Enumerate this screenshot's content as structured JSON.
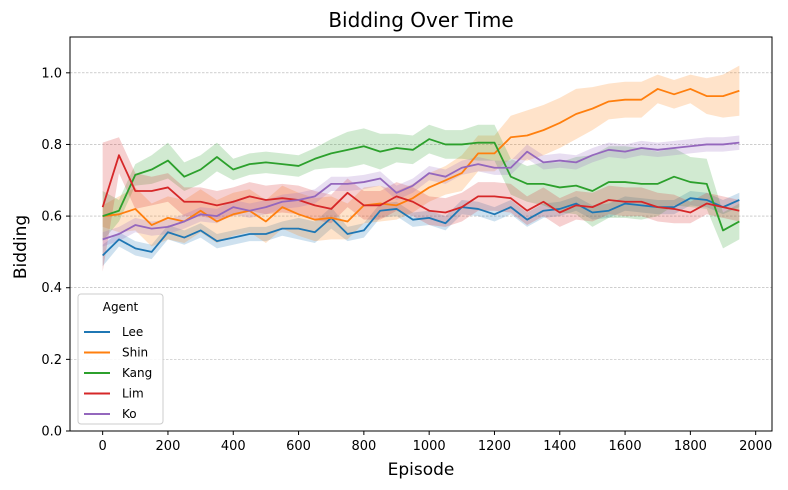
{
  "chart_data": {
    "type": "line",
    "title": "Bidding Over Time",
    "xlabel": "Episode",
    "ylabel": "Bidding",
    "xlim": [
      -100,
      2050
    ],
    "ylim": [
      0.0,
      1.1
    ],
    "xticks": [
      0,
      200,
      400,
      600,
      800,
      1000,
      1200,
      1400,
      1600,
      1800,
      2000
    ],
    "xtick_labels": [
      "0",
      "200",
      "400",
      "600",
      "800",
      "1000",
      "1200",
      "1400",
      "1600",
      "1800",
      "2000"
    ],
    "yticks": [
      0.0,
      0.2,
      0.4,
      0.6,
      0.8,
      1.0
    ],
    "ytick_labels": [
      "0.0",
      "0.2",
      "0.4",
      "0.6",
      "0.8",
      "1.0"
    ],
    "grid": "horizontal dashed",
    "legend_title": "Agent",
    "legend_position": "lower-left",
    "x": [
      0,
      50,
      100,
      150,
      200,
      250,
      300,
      350,
      400,
      450,
      500,
      550,
      600,
      650,
      700,
      750,
      800,
      850,
      900,
      950,
      1000,
      1050,
      1100,
      1150,
      1200,
      1250,
      1300,
      1350,
      1400,
      1450,
      1500,
      1550,
      1600,
      1650,
      1700,
      1750,
      1800,
      1850,
      1900,
      1950
    ],
    "series": [
      {
        "name": "Lee",
        "color": "#1f77b4",
        "values": [
          0.49,
          0.535,
          0.51,
          0.5,
          0.555,
          0.54,
          0.56,
          0.53,
          0.54,
          0.55,
          0.55,
          0.565,
          0.565,
          0.555,
          0.595,
          0.55,
          0.56,
          0.615,
          0.62,
          0.59,
          0.595,
          0.58,
          0.625,
          0.62,
          0.605,
          0.625,
          0.59,
          0.615,
          0.62,
          0.635,
          0.61,
          0.615,
          0.635,
          0.63,
          0.625,
          0.625,
          0.65,
          0.645,
          0.625,
          0.645
        ],
        "band": [
          0.03,
          0.02,
          0.02,
          0.02,
          0.02,
          0.02,
          0.02,
          0.02,
          0.02,
          0.02,
          0.02,
          0.02,
          0.03,
          0.03,
          0.03,
          0.02,
          0.02,
          0.02,
          0.02,
          0.02,
          0.02,
          0.02,
          0.02,
          0.02,
          0.02,
          0.02,
          0.02,
          0.02,
          0.02,
          0.02,
          0.02,
          0.02,
          0.02,
          0.02,
          0.02,
          0.02,
          0.02,
          0.02,
          0.02,
          0.02
        ]
      },
      {
        "name": "Shin",
        "color": "#ff7f0e",
        "values": [
          0.6,
          0.605,
          0.62,
          0.575,
          0.595,
          0.585,
          0.615,
          0.585,
          0.605,
          0.615,
          0.585,
          0.625,
          0.605,
          0.59,
          0.595,
          0.585,
          0.63,
          0.635,
          0.63,
          0.65,
          0.68,
          0.7,
          0.72,
          0.775,
          0.775,
          0.82,
          0.825,
          0.84,
          0.86,
          0.885,
          0.9,
          0.92,
          0.925,
          0.925,
          0.955,
          0.94,
          0.955,
          0.935,
          0.935,
          0.95
        ],
        "band": [
          0.03,
          0.05,
          0.06,
          0.06,
          0.06,
          0.06,
          0.06,
          0.06,
          0.06,
          0.06,
          0.06,
          0.06,
          0.06,
          0.06,
          0.06,
          0.05,
          0.05,
          0.05,
          0.04,
          0.04,
          0.04,
          0.04,
          0.05,
          0.05,
          0.05,
          0.06,
          0.07,
          0.07,
          0.07,
          0.07,
          0.06,
          0.05,
          0.05,
          0.05,
          0.04,
          0.04,
          0.04,
          0.05,
          0.06,
          0.07
        ]
      },
      {
        "name": "Kang",
        "color": "#2ca02c",
        "values": [
          0.6,
          0.615,
          0.715,
          0.73,
          0.755,
          0.71,
          0.73,
          0.765,
          0.73,
          0.745,
          0.75,
          0.745,
          0.74,
          0.76,
          0.775,
          0.785,
          0.795,
          0.78,
          0.79,
          0.785,
          0.815,
          0.8,
          0.8,
          0.805,
          0.805,
          0.71,
          0.69,
          0.69,
          0.68,
          0.685,
          0.67,
          0.695,
          0.695,
          0.69,
          0.69,
          0.71,
          0.695,
          0.69,
          0.56,
          0.585
        ],
        "band": [
          0.07,
          0.03,
          0.03,
          0.04,
          0.05,
          0.04,
          0.04,
          0.04,
          0.03,
          0.03,
          0.03,
          0.03,
          0.03,
          0.03,
          0.04,
          0.05,
          0.05,
          0.05,
          0.04,
          0.04,
          0.04,
          0.04,
          0.04,
          0.05,
          0.05,
          0.05,
          0.05,
          0.06,
          0.07,
          0.08,
          0.1,
          0.1,
          0.1,
          0.1,
          0.09,
          0.08,
          0.07,
          0.07,
          0.05,
          0.05
        ]
      },
      {
        "name": "Lim",
        "color": "#d62728",
        "values": [
          0.625,
          0.77,
          0.67,
          0.67,
          0.68,
          0.64,
          0.64,
          0.63,
          0.64,
          0.655,
          0.645,
          0.65,
          0.645,
          0.63,
          0.62,
          0.665,
          0.63,
          0.63,
          0.655,
          0.64,
          0.615,
          0.61,
          0.625,
          0.655,
          0.655,
          0.65,
          0.615,
          0.64,
          0.61,
          0.63,
          0.625,
          0.645,
          0.64,
          0.64,
          0.625,
          0.62,
          0.61,
          0.635,
          0.625,
          0.615
        ],
        "band": [
          0.18,
          0.05,
          0.05,
          0.04,
          0.04,
          0.04,
          0.04,
          0.04,
          0.04,
          0.04,
          0.04,
          0.04,
          0.04,
          0.04,
          0.04,
          0.04,
          0.04,
          0.04,
          0.04,
          0.04,
          0.04,
          0.04,
          0.04,
          0.04,
          0.04,
          0.04,
          0.04,
          0.04,
          0.04,
          0.04,
          0.04,
          0.04,
          0.04,
          0.04,
          0.04,
          0.04,
          0.03,
          0.03,
          0.03,
          0.03
        ]
      },
      {
        "name": "Ko",
        "color": "#9467bd",
        "values": [
          0.535,
          0.55,
          0.575,
          0.565,
          0.57,
          0.585,
          0.605,
          0.6,
          0.625,
          0.615,
          0.625,
          0.64,
          0.645,
          0.655,
          0.69,
          0.69,
          0.695,
          0.705,
          0.665,
          0.685,
          0.72,
          0.71,
          0.735,
          0.745,
          0.735,
          0.735,
          0.78,
          0.75,
          0.755,
          0.75,
          0.77,
          0.785,
          0.78,
          0.79,
          0.785,
          0.79,
          0.795,
          0.8,
          0.8,
          0.805
        ],
        "band": [
          0.02,
          0.02,
          0.02,
          0.02,
          0.02,
          0.02,
          0.02,
          0.02,
          0.02,
          0.02,
          0.02,
          0.02,
          0.02,
          0.02,
          0.02,
          0.02,
          0.02,
          0.02,
          0.02,
          0.02,
          0.02,
          0.02,
          0.02,
          0.02,
          0.02,
          0.02,
          0.02,
          0.02,
          0.02,
          0.02,
          0.02,
          0.02,
          0.02,
          0.02,
          0.02,
          0.02,
          0.02,
          0.02,
          0.02,
          0.02
        ]
      }
    ]
  }
}
